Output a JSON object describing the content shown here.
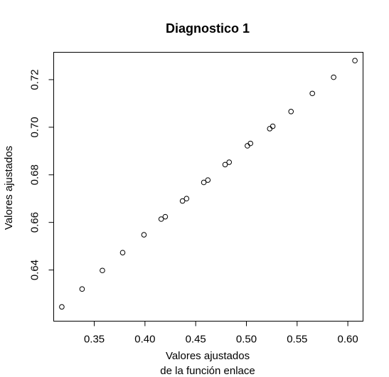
{
  "chart_data": {
    "type": "scatter",
    "title": "Diagnostico 1",
    "xlabel": [
      "Valores ajustados",
      "de la función enlace"
    ],
    "ylabel": "Valores ajustados",
    "xlim": [
      0.31,
      0.615
    ],
    "ylim": [
      0.6185,
      0.7315
    ],
    "xticks": [
      0.35,
      0.4,
      0.45,
      0.5,
      0.55,
      0.6
    ],
    "xtick_labels": [
      "0.35",
      "0.40",
      "0.45",
      "0.50",
      "0.55",
      "0.60"
    ],
    "yticks": [
      0.64,
      0.66,
      0.68,
      0.7,
      0.72
    ],
    "ytick_labels": [
      "0.64",
      "0.66",
      "0.68",
      "0.70",
      "0.72"
    ],
    "grid": false,
    "marker": "open-circle",
    "points": [
      {
        "x": 0.318,
        "y": 0.6245
      },
      {
        "x": 0.338,
        "y": 0.632
      },
      {
        "x": 0.358,
        "y": 0.6398
      },
      {
        "x": 0.378,
        "y": 0.6473
      },
      {
        "x": 0.399,
        "y": 0.6548
      },
      {
        "x": 0.416,
        "y": 0.6614
      },
      {
        "x": 0.42,
        "y": 0.6624
      },
      {
        "x": 0.437,
        "y": 0.669
      },
      {
        "x": 0.441,
        "y": 0.67
      },
      {
        "x": 0.458,
        "y": 0.6768
      },
      {
        "x": 0.462,
        "y": 0.6778
      },
      {
        "x": 0.479,
        "y": 0.6843
      },
      {
        "x": 0.483,
        "y": 0.6853
      },
      {
        "x": 0.501,
        "y": 0.6922
      },
      {
        "x": 0.504,
        "y": 0.6932
      },
      {
        "x": 0.523,
        "y": 0.6994
      },
      {
        "x": 0.526,
        "y": 0.7004
      },
      {
        "x": 0.544,
        "y": 0.7066
      },
      {
        "x": 0.565,
        "y": 0.7142
      },
      {
        "x": 0.586,
        "y": 0.721
      },
      {
        "x": 0.607,
        "y": 0.728
      }
    ]
  }
}
